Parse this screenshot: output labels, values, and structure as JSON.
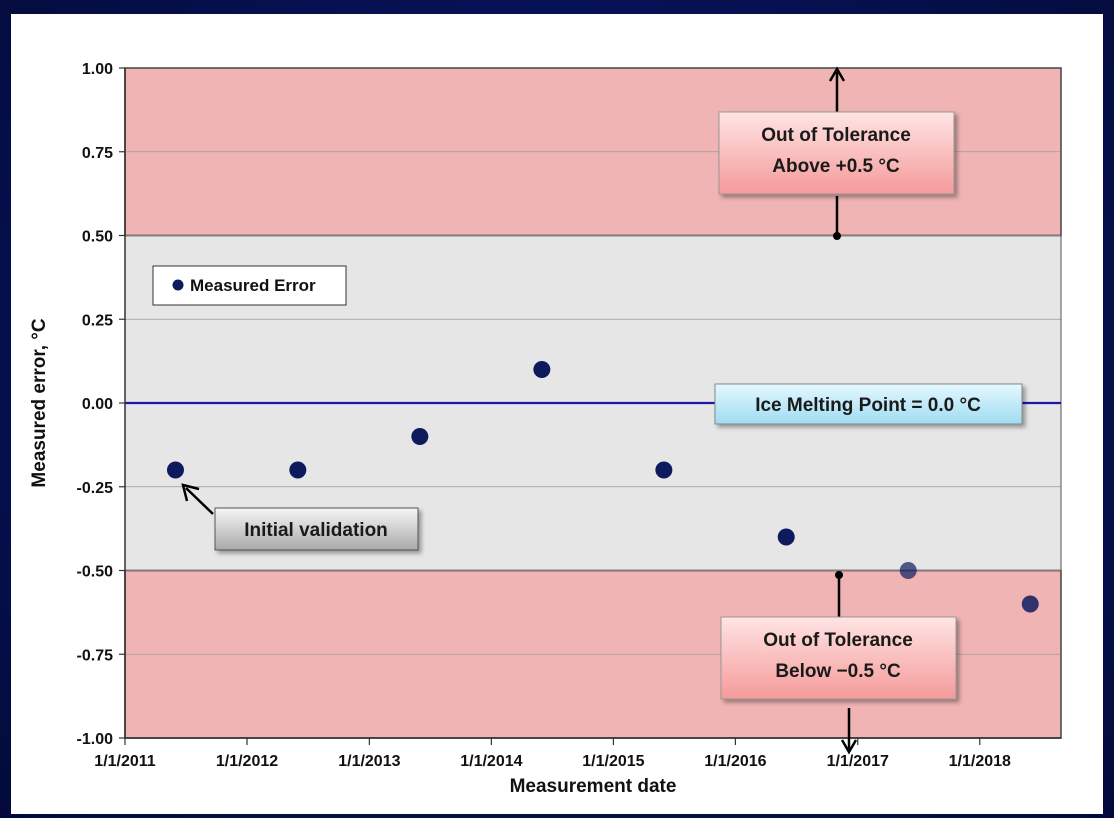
{
  "chart_data": {
    "type": "scatter",
    "xlabel": "Measurement date",
    "ylabel": "Measured error, °C",
    "ylim": [
      -1.0,
      1.0
    ],
    "xlim": [
      "1/1/2011",
      "9/1/2018"
    ],
    "y_ticks": [
      "1.00",
      "0.75",
      "0.50",
      "0.25",
      "0.00",
      "-0.25",
      "-0.50",
      "-0.75",
      "-1.00"
    ],
    "x_ticks": [
      "1/1/2011",
      "1/1/2012",
      "1/1/2013",
      "1/1/2014",
      "1/1/2015",
      "1/1/2016",
      "1/1/2017",
      "1/1/2018"
    ],
    "grid": true,
    "legend_position": "upper-left",
    "series": [
      {
        "name": "Measured Error",
        "color": "#0d1b5e",
        "points": [
          {
            "x": "6/1/2011",
            "y": -0.2
          },
          {
            "x": "6/1/2012",
            "y": -0.2
          },
          {
            "x": "6/1/2013",
            "y": -0.1
          },
          {
            "x": "6/1/2014",
            "y": 0.1
          },
          {
            "x": "6/1/2015",
            "y": -0.2
          },
          {
            "x": "6/1/2016",
            "y": -0.4
          },
          {
            "x": "6/1/2017",
            "y": -0.5
          },
          {
            "x": "6/1/2018",
            "y": -0.6
          }
        ]
      }
    ],
    "reference_line": {
      "y": 0.0,
      "color": "#1a1aaa"
    },
    "tolerance_bands": [
      {
        "from": 0.5,
        "to": 1.0,
        "color": "#f0b4b4"
      },
      {
        "from": -1.0,
        "to": -0.5,
        "color": "#f0b4b4"
      }
    ],
    "in_tolerance_color": "#e6e6e6",
    "annotations": {
      "upper": {
        "line1": "Out of Tolerance",
        "line2": "Above +0.5 °C"
      },
      "lower": {
        "line1": "Out of Tolerance",
        "line2": "Below −0.5 °C"
      },
      "ice": "Ice Melting Point = 0.0  °C",
      "initial": "Initial validation"
    }
  }
}
